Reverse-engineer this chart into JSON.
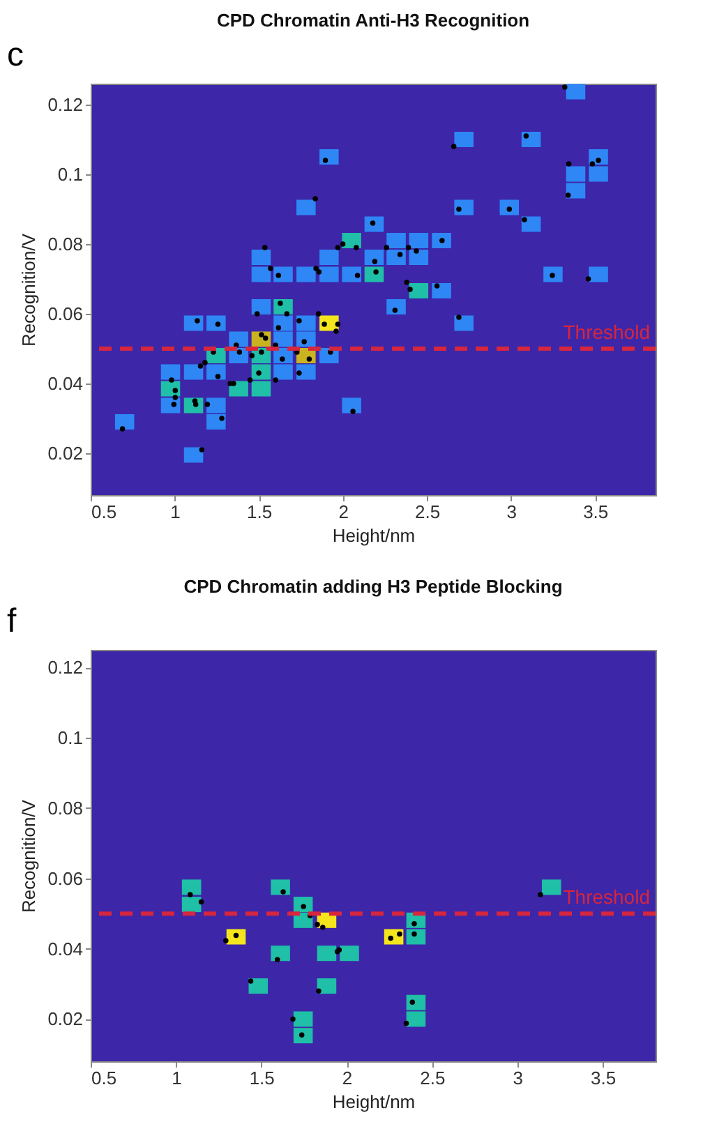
{
  "chart_data": [
    {
      "type": "scatter",
      "title": "CPD Chromatin Anti-H3 Recognition",
      "xlabel": "Height/nm",
      "ylabel": "Recognition/V",
      "annotations": [
        "c"
      ],
      "xlim": [
        0.5,
        3.86
      ],
      "ylim": [
        0.008,
        0.126
      ],
      "xticks": [
        0.5,
        1,
        1.5,
        2,
        2.5,
        3,
        3.5
      ],
      "yticks": [
        0.02,
        0.04,
        0.06,
        0.08,
        0.1,
        0.12
      ],
      "ref_lines": [
        {
          "axis": "y",
          "value": 0.05,
          "label": "Threshold",
          "color": "#d7263d",
          "line_style": "dashed"
        }
      ],
      "series": [
        {
          "marker": "square",
          "x": [
            0.702,
            1.246,
            1.112,
            0.975,
            1.112,
            1.246,
            2.052,
            0.975,
            1.38,
            1.514,
            0.975,
            1.112,
            1.246,
            1.514,
            1.645,
            1.781,
            1.246,
            1.38,
            1.514,
            1.645,
            1.781,
            1.918,
            1.38,
            1.514,
            1.645,
            1.781,
            1.112,
            1.246,
            1.645,
            1.781,
            1.918,
            2.72,
            1.514,
            1.645,
            2.317,
            2.451,
            2.587,
            1.514,
            1.645,
            1.781,
            1.918,
            2.052,
            2.186,
            3.25,
            3.52,
            1.514,
            1.918,
            2.186,
            2.317,
            2.451,
            2.052,
            2.317,
            2.451,
            2.587,
            2.186,
            3.12,
            1.781,
            2.72,
            2.99,
            3.385,
            3.385,
            3.52,
            1.918,
            3.52,
            2.72,
            3.12,
            3.385
          ],
          "values": [
            0.029,
            0.029,
            0.0195,
            0.0337,
            0.0337,
            0.0337,
            0.0337,
            0.0385,
            0.0385,
            0.0385,
            0.0433,
            0.0433,
            0.0433,
            0.0433,
            0.0433,
            0.0433,
            0.048,
            0.048,
            0.048,
            0.048,
            0.048,
            0.048,
            0.0527,
            0.0527,
            0.0527,
            0.0527,
            0.0573,
            0.0573,
            0.0573,
            0.0573,
            0.0573,
            0.0573,
            0.062,
            0.062,
            0.062,
            0.0666,
            0.0666,
            0.0713,
            0.0713,
            0.0713,
            0.0713,
            0.0713,
            0.0713,
            0.0713,
            0.0713,
            0.0762,
            0.0762,
            0.0762,
            0.0762,
            0.0762,
            0.081,
            0.081,
            0.081,
            0.081,
            0.0857,
            0.0857,
            0.0905,
            0.0905,
            0.0905,
            0.0953,
            0.1001,
            0.1001,
            0.105,
            0.105,
            0.11,
            0.11,
            0.1237
          ],
          "colors": [
            "#2e87f5",
            "#2e87f5",
            "#2e87f5",
            "#2e87f5",
            "#1fbfa8",
            "#2e87f5",
            "#2e87f5",
            "#1fbfa8",
            "#1fbfa8",
            "#1fbfa8",
            "#2e87f5",
            "#2e87f5",
            "#2e87f5",
            "#1fbfa8",
            "#2e87f5",
            "#2e87f5",
            "#1fbfa8",
            "#2e87f5",
            "#1fbfa8",
            "#2e87f5",
            "#c9b320",
            "#2e87f5",
            "#2e87f5",
            "#c9b320",
            "#2e87f5",
            "#2e87f5",
            "#2e87f5",
            "#2e87f5",
            "#2e87f5",
            "#2e87f5",
            "#f5e51c",
            "#2e87f5",
            "#2e87f5",
            "#1fbfa8",
            "#2e87f5",
            "#1fbfa8",
            "#2e87f5",
            "#2e87f5",
            "#2e87f5",
            "#2e87f5",
            "#2e87f5",
            "#2e87f5",
            "#1fbfa8",
            "#2e87f5",
            "#2e87f5",
            "#2e87f5",
            "#2e87f5",
            "#2e87f5",
            "#2e87f5",
            "#2e87f5",
            "#1fbfa8",
            "#2e87f5",
            "#2e87f5",
            "#2e87f5",
            "#2e87f5",
            "#2e87f5",
            "#2e87f5",
            "#2e87f5",
            "#2e87f5",
            "#2e87f5",
            "#2e87f5",
            "#2e87f5",
            "#2e87f5",
            "#2e87f5",
            "#2e87f5",
            "#2e87f5",
            "#2e87f5"
          ]
        },
        {
          "marker": "circle",
          "color": "#000000",
          "x": [
            0.689,
            1.161,
            0.981,
            1.003,
            1.003,
            0.995,
            1.12,
            1.125,
            1.194,
            1.28,
            1.153,
            1.18,
            1.23,
            1.257,
            1.134,
            1.257,
            1.33,
            1.35,
            1.366,
            1.385,
            1.448,
            1.459,
            1.5,
            1.516,
            1.516,
            1.54,
            1.49,
            1.536,
            1.57,
            1.617,
            1.6,
            1.6,
            1.617,
            1.628,
            1.667,
            1.64,
            1.74,
            1.74,
            1.727,
            1.77,
            1.8,
            1.84,
            1.858,
            1.836,
            1.896,
            1.855,
            1.89,
            1.97,
            1.96,
            1.926,
            1.97,
            2.0,
            2.08,
            2.06,
            2.087,
            2.178,
            2.19,
            2.197,
            2.26,
            2.34,
            2.39,
            2.437,
            2.38,
            2.4,
            2.31,
            2.56,
            2.59,
            2.66,
            2.69,
            2.69,
            2.99,
            3.08,
            3.09,
            3.246,
            3.32,
            3.344,
            3.34,
            3.484,
            3.52,
            3.46
          ],
          "values": [
            0.027,
            0.021,
            0.041,
            0.038,
            0.036,
            0.034,
            0.035,
            0.034,
            0.034,
            0.03,
            0.045,
            0.046,
            0.049,
            0.042,
            0.058,
            0.057,
            0.04,
            0.04,
            0.051,
            0.049,
            0.041,
            0.048,
            0.043,
            0.049,
            0.054,
            0.053,
            0.06,
            0.079,
            0.073,
            0.071,
            0.041,
            0.051,
            0.056,
            0.063,
            0.06,
            0.047,
            0.058,
            0.043,
            0.049,
            0.052,
            0.047,
            0.073,
            0.072,
            0.093,
            0.104,
            0.06,
            0.057,
            0.057,
            0.055,
            0.049,
            0.079,
            0.08,
            0.079,
            0.032,
            0.071,
            0.086,
            0.075,
            0.072,
            0.079,
            0.077,
            0.079,
            0.078,
            0.069,
            0.067,
            0.061,
            0.068,
            0.081,
            0.108,
            0.09,
            0.059,
            0.09,
            0.087,
            0.111,
            0.071,
            0.125,
            0.103,
            0.094,
            0.103,
            0.104,
            0.07
          ]
        }
      ]
    },
    {
      "type": "scatter",
      "title": "CPD Chromatin adding H3 Peptide Blocking",
      "xlabel": "Height/nm",
      "ylabel": "Recognition/V",
      "annotations": [
        "f"
      ],
      "xlim": [
        0.5,
        3.81
      ],
      "ylim": [
        0.008,
        0.125
      ],
      "xticks": [
        0.5,
        1,
        1.5,
        2,
        2.5,
        3,
        3.5
      ],
      "yticks": [
        0.02,
        0.04,
        0.06,
        0.08,
        0.1,
        0.12
      ],
      "ref_lines": [
        {
          "axis": "y",
          "value": 0.05,
          "label": "Threshold",
          "color": "#d7263d",
          "line_style": "dashed"
        }
      ],
      "series": [
        {
          "marker": "square",
          "x": [
            1.091,
            1.091,
            1.352,
            1.482,
            1.612,
            1.612,
            1.745,
            1.745,
            1.745,
            1.745,
            1.883,
            1.883,
            1.883,
            2.016,
            2.276,
            2.406,
            2.406,
            2.406,
            2.406,
            3.2
          ],
          "values": [
            0.0575,
            0.0526,
            0.0434,
            0.0294,
            0.0575,
            0.0387,
            0.0526,
            0.0481,
            0.02,
            0.0153,
            0.0481,
            0.0387,
            0.0294,
            0.0387,
            0.0434,
            0.0481,
            0.0434,
            0.0247,
            0.02,
            0.0575
          ],
          "colors": [
            "#1fbfa8",
            "#1fbfa8",
            "#f5e51c",
            "#1fbfa8",
            "#1fbfa8",
            "#1fbfa8",
            "#1fbfa8",
            "#1fbfa8",
            "#1fbfa8",
            "#1fbfa8",
            "#f5e51c",
            "#1fbfa8",
            "#1fbfa8",
            "#1fbfa8",
            "#f5e51c",
            "#1fbfa8",
            "#1fbfa8",
            "#1fbfa8",
            "#1fbfa8",
            "#1fbfa8"
          ]
        },
        {
          "marker": "circle",
          "color": "#000000",
          "x": [
            1.083,
            1.148,
            1.292,
            1.352,
            1.628,
            1.594,
            1.438,
            1.747,
            1.786,
            1.828,
            1.86,
            1.945,
            1.956,
            1.836,
            1.685,
            1.737,
            2.258,
            2.31,
            2.396,
            2.396,
            2.385,
            2.349,
            3.135
          ],
          "values": [
            0.0554,
            0.0533,
            0.0423,
            0.0438,
            0.0562,
            0.0369,
            0.0308,
            0.052,
            0.0494,
            0.0469,
            0.0461,
            0.0392,
            0.0397,
            0.028,
            0.02,
            0.0155,
            0.043,
            0.0442,
            0.0471,
            0.0442,
            0.0248,
            0.0188,
            0.0554
          ]
        }
      ]
    }
  ]
}
